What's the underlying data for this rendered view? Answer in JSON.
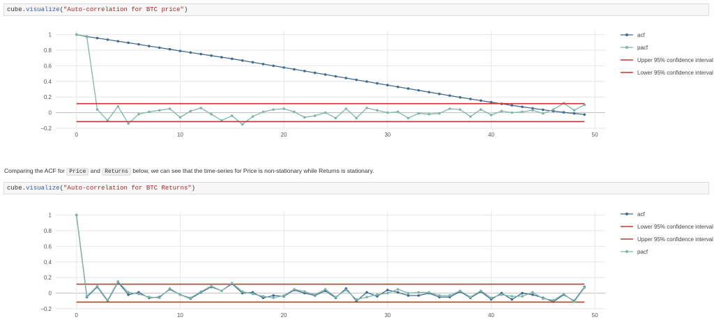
{
  "cell1": {
    "obj": "cube",
    "method": "visualize",
    "arg": "\"Auto-correlation for BTC price\""
  },
  "markdown": {
    "prefix": "Comparing the ACF for ",
    "code1": "Price",
    "mid": " and ",
    "code2": "Returns",
    "suffix": " below, we can see that the time-series for Price is non-stationary while Returns is stationary."
  },
  "cell2": {
    "obj": "cube",
    "method": "visualize",
    "arg": "\"Auto-correlation for BTC Returns\""
  },
  "colors": {
    "acf": "#3e6b8f",
    "pacf": "#7fb5a8",
    "ci": "#c0392b"
  },
  "chart_data": [
    {
      "type": "line",
      "x": [
        0,
        1,
        2,
        3,
        4,
        5,
        6,
        7,
        8,
        9,
        10,
        11,
        12,
        13,
        14,
        15,
        16,
        17,
        18,
        19,
        20,
        21,
        22,
        23,
        24,
        25,
        26,
        27,
        28,
        29,
        30,
        31,
        32,
        33,
        34,
        35,
        36,
        37,
        38,
        39,
        40,
        41,
        42,
        43,
        44,
        45,
        46,
        47,
        48,
        49
      ],
      "xticks": [
        "0",
        "10",
        "20",
        "30",
        "40",
        "50"
      ],
      "yticks": [
        "1",
        "0.8",
        "0.6",
        "0.4",
        "0.2",
        "0",
        "−0.2"
      ],
      "ylim": [
        -0.2,
        1.05
      ],
      "xlim": [
        -2,
        51
      ],
      "grid": true,
      "legend_position": "right",
      "series": [
        {
          "name": "acf",
          "key": "acf",
          "markers": true,
          "values": [
            1.0,
            0.975,
            0.955,
            0.935,
            0.915,
            0.895,
            0.875,
            0.853,
            0.832,
            0.812,
            0.79,
            0.77,
            0.75,
            0.73,
            0.71,
            0.69,
            0.668,
            0.645,
            0.622,
            0.6,
            0.578,
            0.555,
            0.533,
            0.51,
            0.488,
            0.465,
            0.443,
            0.42,
            0.398,
            0.375,
            0.353,
            0.33,
            0.308,
            0.285,
            0.263,
            0.24,
            0.218,
            0.196,
            0.175,
            0.154,
            0.133,
            0.113,
            0.093,
            0.074,
            0.055,
            0.037,
            0.02,
            0.004,
            -0.01,
            -0.025
          ]
        },
        {
          "name": "pacf",
          "key": "pacf",
          "markers": true,
          "values": [
            1.0,
            0.97,
            0.04,
            -0.1,
            0.08,
            -0.14,
            -0.02,
            0.01,
            0.03,
            0.05,
            -0.06,
            0.02,
            0.06,
            -0.02,
            -0.1,
            -0.04,
            -0.15,
            -0.05,
            0.01,
            0.04,
            0.05,
            0.01,
            -0.06,
            -0.04,
            0.0,
            -0.07,
            0.05,
            -0.07,
            0.06,
            0.03,
            0.0,
            0.01,
            -0.07,
            -0.01,
            -0.02,
            -0.01,
            0.05,
            0.04,
            -0.05,
            0.04,
            -0.03,
            0.02,
            0.0,
            0.01,
            0.03,
            -0.01,
            0.04,
            0.12,
            0.03,
            0.1
          ]
        },
        {
          "name": "Upper 95% confidence interval",
          "key": "ci",
          "constant": 0.115
        },
        {
          "name": "Lower 95% confidence interval",
          "key": "ci",
          "constant": -0.115
        }
      ]
    },
    {
      "type": "line",
      "x": [
        0,
        1,
        2,
        3,
        4,
        5,
        6,
        7,
        8,
        9,
        10,
        11,
        12,
        13,
        14,
        15,
        16,
        17,
        18,
        19,
        20,
        21,
        22,
        23,
        24,
        25,
        26,
        27,
        28,
        29,
        30,
        31,
        32,
        33,
        34,
        35,
        36,
        37,
        38,
        39,
        40,
        41,
        42,
        43,
        44,
        45,
        46,
        47,
        48,
        49
      ],
      "xticks": [
        "0",
        "10",
        "20",
        "30",
        "40",
        "50"
      ],
      "yticks": [
        "1",
        "0.8",
        "0.6",
        "0.4",
        "0.2",
        "0",
        "−0.2"
      ],
      "ylim": [
        -0.2,
        1.05
      ],
      "xlim": [
        -2,
        51
      ],
      "grid": true,
      "legend_position": "right",
      "series": [
        {
          "name": "acf",
          "key": "acf",
          "markers": true,
          "values": [
            1.0,
            -0.05,
            0.08,
            -0.1,
            0.14,
            -0.02,
            0.01,
            -0.06,
            -0.05,
            0.05,
            -0.02,
            -0.07,
            0.01,
            0.08,
            0.03,
            0.12,
            0.0,
            0.01,
            -0.06,
            -0.03,
            -0.04,
            0.04,
            0.0,
            -0.03,
            0.03,
            -0.06,
            0.06,
            -0.1,
            0.01,
            -0.04,
            0.04,
            0.01,
            -0.03,
            -0.03,
            0.0,
            -0.05,
            -0.05,
            0.02,
            -0.06,
            0.02,
            -0.08,
            0.0,
            -0.08,
            0.0,
            -0.02,
            -0.06,
            -0.11,
            -0.02,
            -0.1,
            0.08
          ]
        },
        {
          "name": "Lower 95% confidence interval",
          "key": "ci",
          "constant": -0.115
        },
        {
          "name": "Upper 95% confidence interval",
          "key": "ci",
          "constant": 0.115
        },
        {
          "name": "pacf",
          "key": "pacf",
          "markers": true,
          "values": [
            1.0,
            -0.04,
            0.09,
            -0.09,
            0.15,
            0.01,
            -0.01,
            -0.05,
            -0.06,
            0.06,
            -0.02,
            -0.06,
            0.02,
            0.09,
            0.03,
            0.13,
            0.02,
            -0.01,
            -0.04,
            -0.06,
            -0.03,
            0.05,
            0.02,
            -0.02,
            0.05,
            -0.05,
            0.04,
            -0.08,
            -0.05,
            -0.02,
            0.0,
            0.05,
            0.0,
            0.01,
            0.01,
            -0.03,
            -0.03,
            0.03,
            -0.05,
            0.03,
            -0.06,
            -0.02,
            -0.04,
            -0.04,
            0.01,
            -0.07,
            -0.09,
            -0.01,
            -0.11,
            0.07
          ]
        }
      ]
    }
  ]
}
